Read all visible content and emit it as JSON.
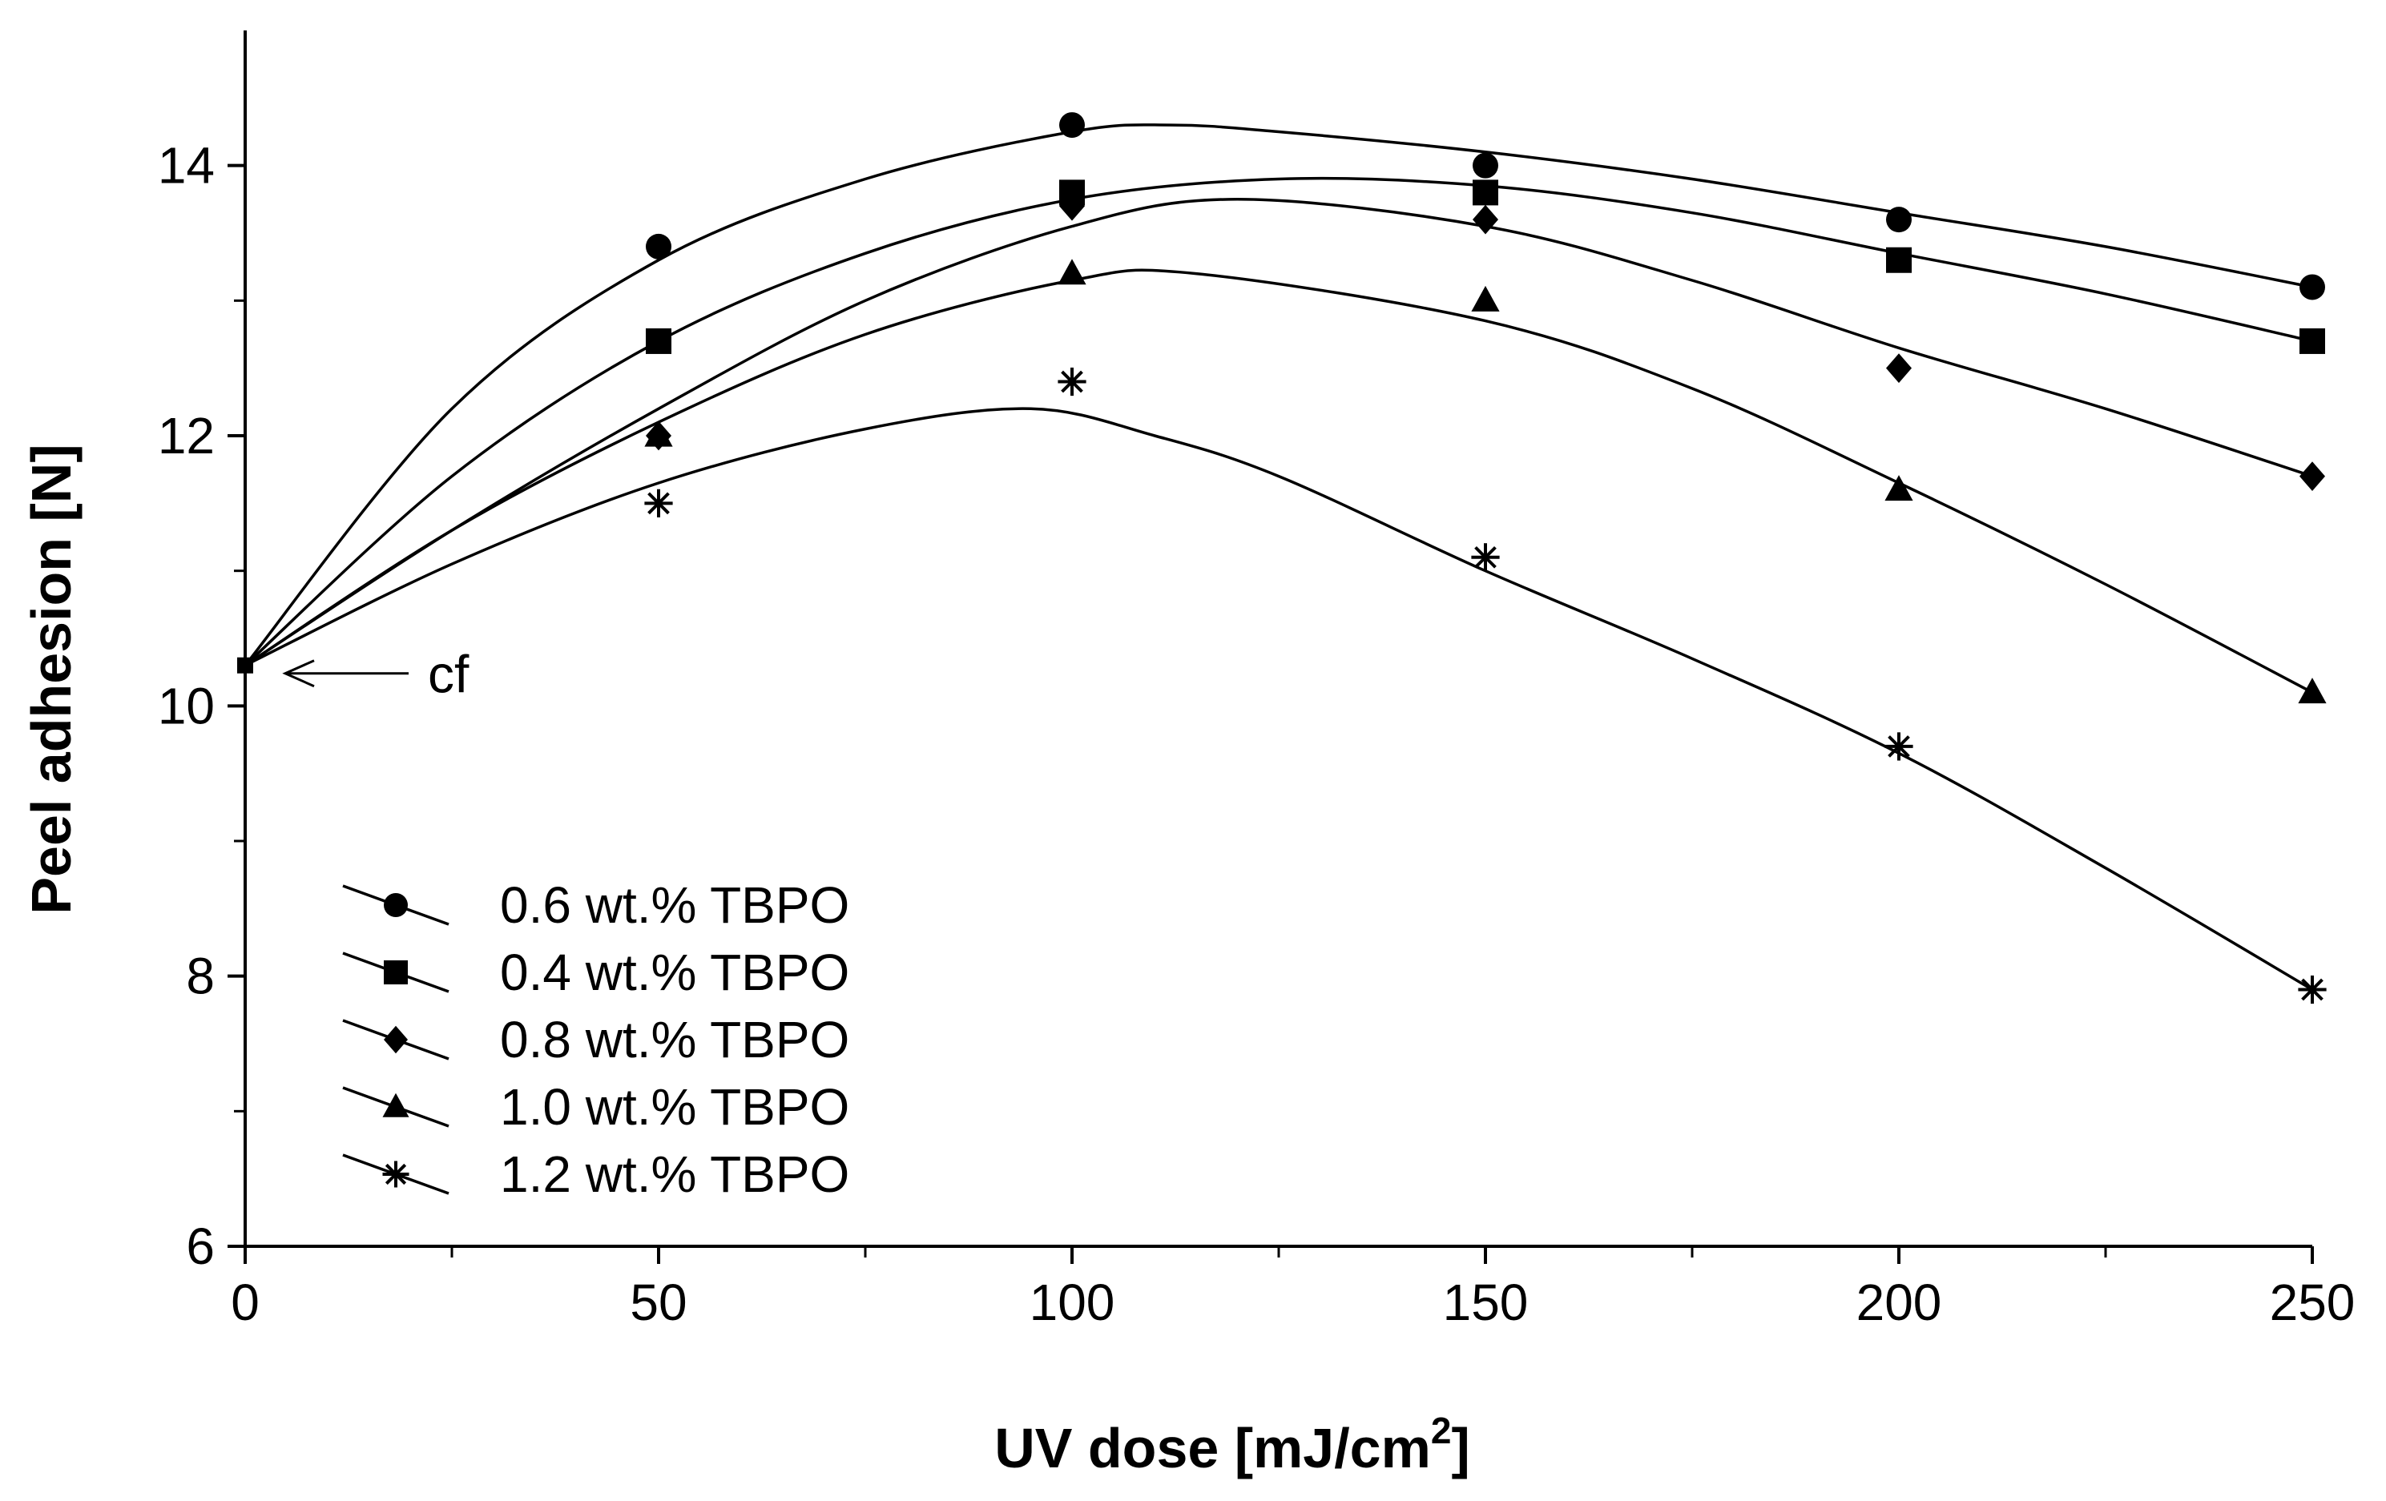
{
  "chart_data": {
    "type": "scatter",
    "title": "",
    "xlabel": "UV dose [mJ/cm",
    "xlabel_sup": "2",
    "xlabel_close": "]",
    "ylabel": "Peel adhesion [N]",
    "xlim": [
      0,
      250
    ],
    "ylim": [
      6,
      15
    ],
    "x_ticks": [
      0,
      50,
      100,
      150,
      200,
      250
    ],
    "y_ticks": [
      6,
      8,
      10,
      12,
      14
    ],
    "x_tick_labels": [
      "0",
      "50",
      "100",
      "150",
      "200",
      "250"
    ],
    "y_tick_labels": [
      "6",
      "8",
      "10",
      "12",
      "14"
    ],
    "x_minor_step": 25,
    "y_minor_step": 1,
    "grid": false,
    "legend_position": "bottom-left",
    "annotation": {
      "text": "cf",
      "x": 0,
      "y": 10.3
    },
    "x": [
      0,
      50,
      100,
      150,
      200,
      250
    ],
    "series": [
      {
        "name": "0.6 wt.% TBPO",
        "marker": "circle",
        "values": [
          10.3,
          13.4,
          14.3,
          14.0,
          13.6,
          13.1
        ]
      },
      {
        "name": "0.4 wt.% TBPO",
        "marker": "square",
        "values": [
          10.3,
          12.7,
          13.8,
          13.8,
          13.3,
          12.7
        ]
      },
      {
        "name": "0.8 wt.% TBPO",
        "marker": "diamond",
        "values": [
          10.3,
          12.0,
          13.7,
          13.6,
          12.5,
          11.7
        ]
      },
      {
        "name": "1.0 wt.% TBPO",
        "marker": "triangle",
        "values": [
          10.3,
          12.0,
          13.2,
          13.0,
          11.6,
          10.1
        ]
      },
      {
        "name": "1.2 wt.% TBPO",
        "marker": "asterisk",
        "values": [
          10.3,
          11.5,
          12.4,
          11.1,
          9.7,
          7.9
        ]
      }
    ],
    "fit_curves": [
      {
        "series": "0.6 wt.% TBPO",
        "x": [
          0,
          25,
          50,
          75,
          100,
          112,
          125,
          150,
          175,
          200,
          225,
          250
        ],
        "y": [
          10.3,
          12.2,
          13.3,
          13.9,
          14.25,
          14.3,
          14.25,
          14.1,
          13.9,
          13.65,
          13.4,
          13.1
        ]
      },
      {
        "series": "0.4 wt.% TBPO",
        "x": [
          0,
          25,
          50,
          75,
          100,
          125,
          150,
          175,
          200,
          225,
          250
        ],
        "y": [
          10.3,
          11.7,
          12.7,
          13.35,
          13.75,
          13.9,
          13.85,
          13.65,
          13.35,
          13.05,
          12.7
        ]
      },
      {
        "series": "0.8 wt.% TBPO",
        "x": [
          0,
          25,
          50,
          75,
          100,
          120,
          150,
          175,
          200,
          225,
          250
        ],
        "y": [
          10.3,
          11.3,
          12.2,
          13.0,
          13.55,
          13.75,
          13.55,
          13.15,
          12.65,
          12.2,
          11.7
        ]
      },
      {
        "series": "1.0 wt.% TBPO",
        "x": [
          0,
          25,
          50,
          75,
          100,
          115,
          150,
          175,
          200,
          225,
          250
        ],
        "y": [
          10.3,
          11.3,
          12.1,
          12.75,
          13.15,
          13.2,
          12.85,
          12.35,
          11.65,
          10.9,
          10.1
        ]
      },
      {
        "series": "1.2 wt.% TBPO",
        "x": [
          0,
          25,
          50,
          75,
          95,
          110,
          125,
          150,
          175,
          200,
          225,
          250
        ],
        "y": [
          10.3,
          11.05,
          11.65,
          12.05,
          12.2,
          12.0,
          11.7,
          11.0,
          10.35,
          9.65,
          8.8,
          7.9
        ]
      }
    ]
  }
}
